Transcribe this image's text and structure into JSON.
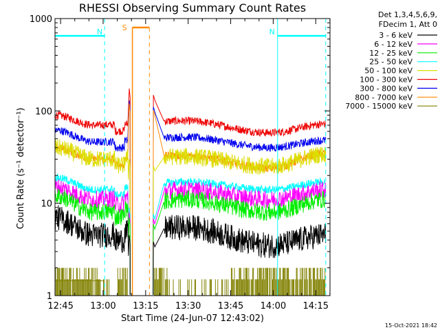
{
  "chart_data": {
    "type": "line",
    "title": "RHESSI Observing Summary Count Rates",
    "xlabel": "Start Time (24-Jun-07 12:43:02)",
    "ylabel": "Count Rate (s⁻¹ detector⁻¹)",
    "yscale": "log",
    "ylim": [
      1,
      1000
    ],
    "xlim_minutes": [
      0,
      97
    ],
    "x_start": "12:43:02",
    "x_ticks": [
      "12:45",
      "13:00",
      "13:15",
      "13:30",
      "13:45",
      "14:00",
      "14:15"
    ],
    "x_tick_minutes": [
      1.97,
      16.97,
      31.97,
      46.97,
      61.97,
      76.97,
      91.97
    ],
    "y_ticks": [
      "1",
      "10",
      "100",
      "1000"
    ],
    "y_tick_values": [
      1,
      10,
      100,
      1000
    ],
    "legend": {
      "header": [
        "Det 1,3,4,5,6,9,",
        "FDecim 1, Att 0"
      ],
      "placement": "top-right-outside"
    },
    "series": [
      {
        "name": "3 - 6 keV",
        "color": "#000000",
        "base": [
          7,
          4.5,
          5.5,
          3.5,
          4.5
        ],
        "peak": 4.5
      },
      {
        "name": "6 - 12 keV",
        "color": "#ff00ff",
        "base": [
          15,
          11,
          14,
          11,
          14
        ],
        "peak": 8
      },
      {
        "name": "12 - 25 keV",
        "color": "#00ee00",
        "base": [
          12,
          8,
          11,
          8,
          11
        ],
        "peak": 7
      },
      {
        "name": "25 - 50 keV",
        "color": "#00ffff",
        "base": [
          19,
          14,
          17,
          14,
          17
        ],
        "peak": 9
      },
      {
        "name": "50 - 100 keV",
        "color": "#dddd00",
        "base": [
          40,
          30,
          32,
          25,
          34
        ],
        "peak": 30
      },
      {
        "name": "100 - 300 keV",
        "color": "#ee0000",
        "base": [
          90,
          70,
          78,
          58,
          72
        ],
        "peak": 175
      },
      {
        "name": "300 - 800 keV",
        "color": "#0000ee",
        "base": [
          62,
          46,
          52,
          40,
          48
        ],
        "peak": 130
      },
      {
        "name": "800 - 7000 keV",
        "color": "#ff8800",
        "base": [
          40,
          30,
          33,
          24,
          35
        ],
        "peak": 120
      },
      {
        "name": "7000 - 15000 keV",
        "color": "#808000",
        "base": [
          1.4,
          1.4,
          1.4,
          1.4,
          1.4
        ],
        "peak": 1.4
      }
    ],
    "annotations": [
      {
        "label": "N",
        "color": "#00ffff",
        "x_minutes": [
          0,
          17.5
        ],
        "y": 650
      },
      {
        "label": "N",
        "color": "#00ffff",
        "x_minutes": [
          78.5,
          95.5
        ],
        "y": 650
      },
      {
        "label": "S",
        "color": "#ff8800",
        "x_minutes": [
          27.3,
          33.3
        ],
        "y": 800
      }
    ],
    "footer_timestamp": "15-Oct-2021 18:42"
  }
}
